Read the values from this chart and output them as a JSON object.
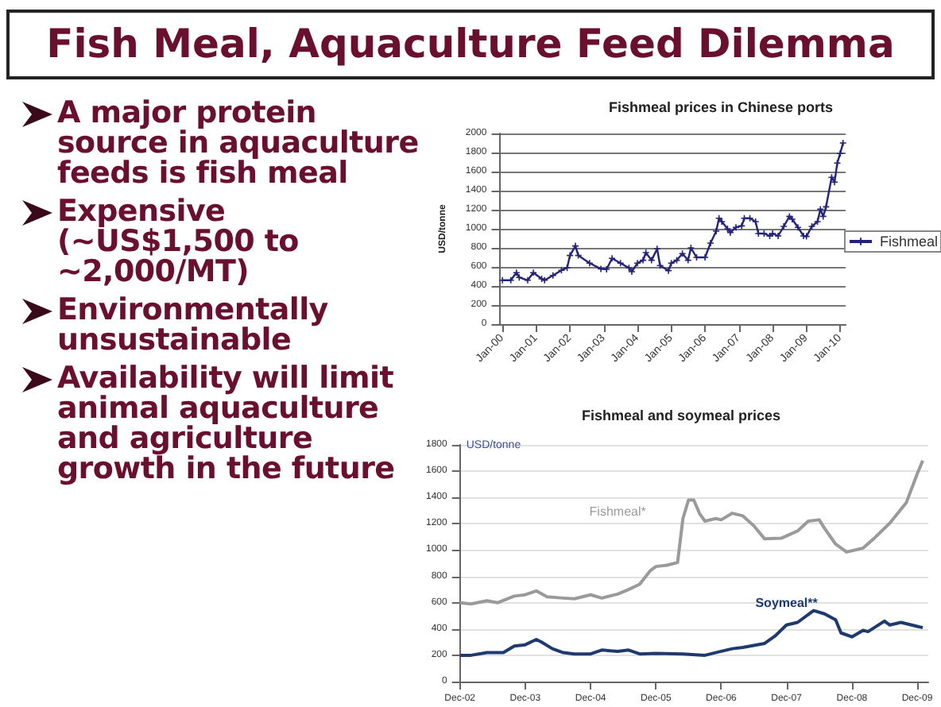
{
  "chart_data": [
    {
      "type": "other",
      "title": "Fish Meal, Aquaculture Feed Dilemma",
      "annotations": [
        "A major protein source in aquaculture feeds is fish meal",
        "Expensive (~US$1,500 to ~2,000/MT)",
        "Environmentally unsustainable",
        "Availability will limit animal aquaculture and agriculture growth in the future"
      ]
    },
    {
      "type": "line",
      "title": "Fishmeal prices in Chinese ports",
      "ylabel": "USD/tonne",
      "marker": "cross",
      "grid": "y",
      "legend": "right",
      "xlim": [
        "1999-12",
        "2010-03"
      ],
      "ylim": [
        0,
        2000
      ],
      "yticks": [
        0,
        200,
        400,
        600,
        800,
        1000,
        1200,
        1400,
        1600,
        1800,
        2000
      ],
      "xticks": [
        {
          "value": "2000-01",
          "label": "Jan-00"
        },
        {
          "value": "2001-01",
          "label": "Jan-01"
        },
        {
          "value": "2002-01",
          "label": "Jan-02"
        },
        {
          "value": "2003-01",
          "label": "Jan-03"
        },
        {
          "value": "2004-01",
          "label": "Jan-04"
        },
        {
          "value": "2005-01",
          "label": "Jan-05"
        },
        {
          "value": "2006-01",
          "label": "Jan-06"
        },
        {
          "value": "2007-01",
          "label": "Jan-07"
        },
        {
          "value": "2008-01",
          "label": "Jan-08"
        },
        {
          "value": "2009-01",
          "label": "Jan-09"
        },
        {
          "value": "2010-01",
          "label": "Jan-10"
        }
      ],
      "series": [
        {
          "name": "Fishmeal",
          "color": "#23237a",
          "x": [
            "2000-01",
            "2000-04",
            "2000-06",
            "2000-07",
            "2000-10",
            "2000-12",
            "2001-03",
            "2001-04",
            "2001-07",
            "2001-10",
            "2001-12",
            "2002-01",
            "2002-03",
            "2002-04",
            "2002-08",
            "2002-12",
            "2003-02",
            "2003-04",
            "2003-07",
            "2003-10",
            "2003-11",
            "2004-01",
            "2004-03",
            "2004-04",
            "2004-06",
            "2004-08",
            "2004-09",
            "2004-12",
            "2005-01",
            "2005-03",
            "2005-05",
            "2005-07",
            "2005-08",
            "2005-10",
            "2006-01",
            "2006-03",
            "2006-05",
            "2006-06",
            "2006-07",
            "2006-09",
            "2006-10",
            "2006-12",
            "2007-02",
            "2007-03",
            "2007-05",
            "2007-07",
            "2007-08",
            "2007-10",
            "2007-12",
            "2008-01",
            "2008-03",
            "2008-05",
            "2008-07",
            "2008-08",
            "2008-10",
            "2008-12",
            "2009-01",
            "2009-03",
            "2009-05",
            "2009-06",
            "2009-07",
            "2009-08",
            "2009-10",
            "2009-11",
            "2009-12",
            "2010-01",
            "2010-02"
          ],
          "values": [
            460,
            460,
            540,
            490,
            460,
            540,
            475,
            460,
            510,
            565,
            590,
            720,
            820,
            720,
            640,
            580,
            575,
            690,
            640,
            590,
            550,
            640,
            670,
            750,
            670,
            790,
            615,
            560,
            640,
            670,
            740,
            670,
            800,
            700,
            700,
            850,
            975,
            1110,
            1075,
            1000,
            960,
            1015,
            1030,
            1110,
            1110,
            1075,
            950,
            950,
            925,
            950,
            925,
            1025,
            1130,
            1100,
            1015,
            925,
            920,
            1025,
            1075,
            1205,
            1130,
            1230,
            1540,
            1490,
            1690,
            1790,
            1900
          ]
        }
      ]
    },
    {
      "type": "line",
      "title": "Fishmeal and soymeal prices",
      "ylabel": "USD/tonne",
      "marker": "none",
      "grid": "y",
      "xlim": [
        "2002-12",
        "2010-02"
      ],
      "ylim": [
        0,
        1800
      ],
      "yticks": [
        0,
        200,
        400,
        600,
        800,
        1000,
        1200,
        1400,
        1600,
        1800
      ],
      "xticks": [
        {
          "value": "2002-12",
          "label": "Dec-02"
        },
        {
          "value": "2003-12",
          "label": "Dec-03"
        },
        {
          "value": "2004-12",
          "label": "Dec-04"
        },
        {
          "value": "2005-12",
          "label": "Dec-05"
        },
        {
          "value": "2006-12",
          "label": "Dec-06"
        },
        {
          "value": "2007-12",
          "label": "Dec-07"
        },
        {
          "value": "2008-12",
          "label": "Dec-08"
        },
        {
          "value": "2009-12",
          "label": "Dec-09"
        }
      ],
      "series": [
        {
          "name": "Fishmeal*",
          "color": "#9a9a9a",
          "x": [
            "2002-12",
            "2003-02",
            "2003-05",
            "2003-07",
            "2003-10",
            "2003-12",
            "2004-02",
            "2004-04",
            "2004-07",
            "2004-09",
            "2004-12",
            "2005-02",
            "2005-05",
            "2005-07",
            "2005-09",
            "2005-11",
            "2005-12",
            "2006-02",
            "2006-04",
            "2006-05",
            "2006-06",
            "2006-07",
            "2006-08",
            "2006-09",
            "2006-11",
            "2006-12",
            "2007-02",
            "2007-04",
            "2007-06",
            "2007-08",
            "2007-11",
            "2008-02",
            "2008-04",
            "2008-06",
            "2008-07",
            "2008-09",
            "2008-11",
            "2009-02",
            "2009-04",
            "2009-07",
            "2009-10",
            "2009-12",
            "2010-01"
          ],
          "values": [
            600,
            590,
            615,
            600,
            650,
            660,
            690,
            645,
            635,
            630,
            660,
            635,
            665,
            700,
            740,
            845,
            875,
            885,
            905,
            1240,
            1380,
            1380,
            1280,
            1220,
            1240,
            1230,
            1280,
            1260,
            1185,
            1085,
            1090,
            1145,
            1220,
            1230,
            1165,
            1045,
            985,
            1015,
            1085,
            1205,
            1360,
            1580,
            1680
          ]
        },
        {
          "name": "Soymeal**",
          "color": "#1f3a6e",
          "x": [
            "2002-12",
            "2003-02",
            "2003-05",
            "2003-08",
            "2003-10",
            "2003-12",
            "2004-02",
            "2004-03",
            "2004-05",
            "2004-07",
            "2004-09",
            "2004-12",
            "2005-02",
            "2005-05",
            "2005-07",
            "2005-09",
            "2005-12",
            "2006-05",
            "2006-09",
            "2006-12",
            "2007-02",
            "2007-04",
            "2007-08",
            "2007-10",
            "2007-12",
            "2008-02",
            "2008-04",
            "2008-05",
            "2008-07",
            "2008-09",
            "2008-10",
            "2008-12",
            "2009-02",
            "2009-03",
            "2009-06",
            "2009-07",
            "2009-09",
            "2009-12",
            "2010-01"
          ],
          "values": [
            200,
            200,
            220,
            220,
            270,
            280,
            320,
            300,
            250,
            220,
            210,
            210,
            240,
            230,
            240,
            210,
            215,
            210,
            200,
            230,
            250,
            260,
            290,
            350,
            430,
            450,
            510,
            540,
            515,
            470,
            370,
            340,
            390,
            380,
            460,
            430,
            450,
            420,
            410
          ]
        }
      ]
    }
  ]
}
